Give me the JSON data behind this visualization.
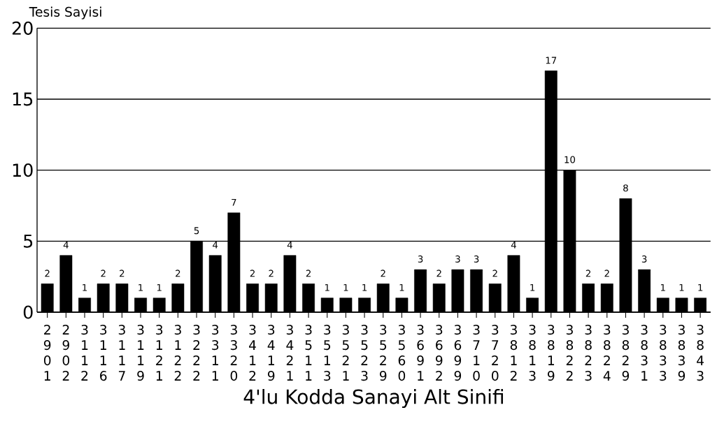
{
  "chart_data": {
    "type": "bar",
    "xlabel": "4'lu Kodda Sanayi Alt Sinifi",
    "ylabel": "Tesis Sayisi",
    "categories": [
      "2901",
      "2902",
      "3112",
      "3116",
      "3117",
      "3119",
      "3121",
      "3122",
      "3222",
      "3311",
      "3320",
      "3412",
      "3419",
      "3421",
      "3511",
      "3513",
      "3521",
      "3523",
      "3529",
      "3560",
      "3691",
      "3692",
      "3699",
      "3710",
      "3720",
      "3812",
      "3813",
      "3819",
      "3822",
      "3823",
      "3824",
      "3829",
      "3831",
      "3833",
      "3839",
      "3843"
    ],
    "values": [
      2,
      4,
      1,
      2,
      2,
      1,
      1,
      2,
      5,
      4,
      7,
      2,
      2,
      4,
      2,
      1,
      1,
      1,
      2,
      1,
      3,
      2,
      3,
      3,
      2,
      4,
      1,
      17,
      10,
      2,
      2,
      8,
      3,
      1,
      1,
      1
    ],
    "color": "#000000",
    "ylim": [
      0,
      20
    ],
    "yticks": [
      0,
      5,
      10,
      15,
      20
    ],
    "grid": "y",
    "data_labels": true
  }
}
